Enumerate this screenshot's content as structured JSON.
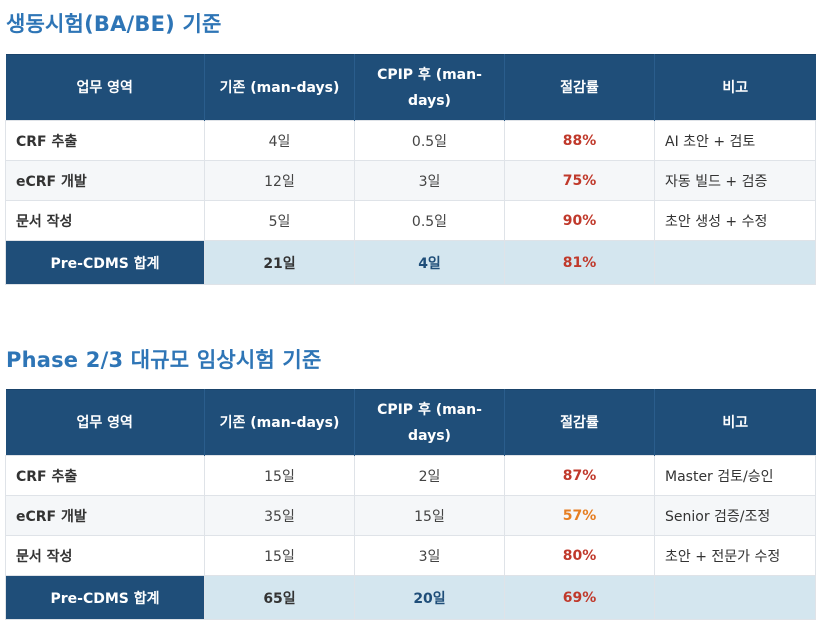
{
  "sections": [
    {
      "title": "생동시험(BA/BE) 기준",
      "headers": [
        "업무 영역",
        "기존 (man-days)",
        "CPIP 후 (man-days)",
        "절감률",
        "비고"
      ],
      "rows": [
        {
          "area": "CRF 추출",
          "base": "4일",
          "after": "0.5일",
          "rate": "88%",
          "rate_color": "#c0392b",
          "note": "AI 초안 + 검토"
        },
        {
          "area": "eCRF 개발",
          "base": "12일",
          "after": "3일",
          "rate": "75%",
          "rate_color": "#c0392b",
          "note": "자동 빌드 + 검증"
        },
        {
          "area": "문서 작성",
          "base": "5일",
          "after": "0.5일",
          "rate": "90%",
          "rate_color": "#c0392b",
          "note": "초안 생성 + 수정"
        }
      ],
      "total": {
        "label": "Pre-CDMS 합계",
        "base": "21일",
        "after": "4일",
        "rate": "81%",
        "rate_color": "#c0392b",
        "note": ""
      }
    },
    {
      "title": "Phase 2/3 대규모 임상시험 기준",
      "headers": [
        "업무 영역",
        "기존 (man-days)",
        "CPIP 후 (man-days)",
        "절감률",
        "비고"
      ],
      "rows": [
        {
          "area": "CRF 추출",
          "base": "15일",
          "after": "2일",
          "rate": "87%",
          "rate_color": "#c0392b",
          "note": "Master 검토/승인"
        },
        {
          "area": "eCRF 개발",
          "base": "35일",
          "after": "15일",
          "rate": "57%",
          "rate_color": "#e67e22",
          "note": "Senior 검증/조정"
        },
        {
          "area": "문서 작성",
          "base": "15일",
          "after": "3일",
          "rate": "80%",
          "rate_color": "#c0392b",
          "note": "초안 + 전문가 수정"
        }
      ],
      "total": {
        "label": "Pre-CDMS 합계",
        "base": "65일",
        "after": "20일",
        "rate": "69%",
        "rate_color": "#c0392b",
        "note": ""
      }
    }
  ],
  "colors": {
    "header_bg": "#1f4e79",
    "title": "#2e75b6",
    "total_bg": "#d4e6ef"
  }
}
